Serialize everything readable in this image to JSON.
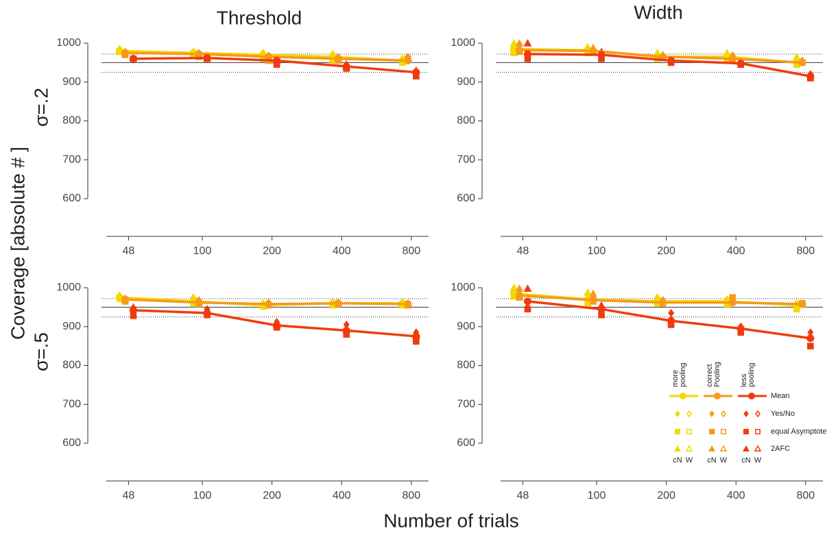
{
  "figure": {
    "ylabel": "Coverage [absolute # ]",
    "xlabel": "Number of trials",
    "reference": {
      "solid": 950,
      "dotted": [
        925,
        972
      ]
    },
    "legend": {
      "columns": [
        [
          "more",
          "pooling"
        ],
        [
          "correct",
          "Pooling"
        ],
        [
          "less",
          "pooling"
        ]
      ],
      "rows": [
        "Mean",
        "Yes/No",
        "equal Asymptote",
        "2AFC"
      ],
      "variants": [
        "cN",
        "W"
      ]
    }
  },
  "chart_data": [
    {
      "type": "line",
      "title": "Threshold",
      "row_label": "σ=.2",
      "x": [
        48,
        100,
        200,
        400,
        800
      ],
      "xlog": true,
      "xlim": [
        32,
        950
      ],
      "xticks": [
        48,
        100,
        200,
        400,
        800
      ],
      "ylim": [
        600,
        1000
      ],
      "yticks": [
        600,
        700,
        800,
        900,
        1000
      ],
      "series": [
        {
          "color": "#f5d800",
          "values": [
            980,
            975,
            970,
            965,
            955
          ]
        },
        {
          "color": "#f59a1a",
          "values": [
            975,
            972,
            965,
            960,
            955
          ]
        },
        {
          "color": "#f03c0c",
          "values": [
            960,
            962,
            955,
            940,
            925
          ]
        }
      ],
      "markers": [
        {
          "shape": "diamond",
          "color": "#f5d800",
          "values": [
            985,
            978,
            975,
            972,
            960
          ]
        },
        {
          "shape": "square",
          "color": "#f5d800",
          "values": [
            978,
            970,
            960,
            955,
            950
          ]
        },
        {
          "shape": "triangle",
          "color": "#f5d800",
          "values": [
            982,
            975,
            972,
            968,
            962
          ]
        },
        {
          "shape": "diamond",
          "color": "#f59a1a",
          "values": [
            978,
            975,
            968,
            965,
            965
          ]
        },
        {
          "shape": "square",
          "color": "#f59a1a",
          "values": [
            970,
            965,
            955,
            955,
            960
          ]
        },
        {
          "shape": "triangle",
          "color": "#f59a1a",
          "values": [
            975,
            972,
            965,
            960,
            958
          ]
        },
        {
          "shape": "diamond",
          "color": "#f03c0c",
          "values": [
            958,
            968,
            955,
            945,
            925
          ]
        },
        {
          "shape": "square",
          "color": "#f03c0c",
          "values": [
            960,
            960,
            945,
            935,
            915
          ]
        },
        {
          "shape": "triangle",
          "color": "#f03c0c",
          "values": [
            962,
            962,
            955,
            940,
            930
          ]
        }
      ]
    },
    {
      "type": "line",
      "title": "Width",
      "x": [
        48,
        100,
        200,
        400,
        800
      ],
      "xlog": true,
      "xlim": [
        32,
        950
      ],
      "xticks": [
        48,
        100,
        200,
        400,
        800
      ],
      "ylim": [
        600,
        1000
      ],
      "yticks": [
        600,
        700,
        800,
        900,
        1000
      ],
      "series": [
        {
          "color": "#f5d800",
          "values": [
            985,
            982,
            965,
            965,
            950
          ]
        },
        {
          "color": "#f59a1a",
          "values": [
            982,
            980,
            965,
            960,
            950
          ]
        },
        {
          "color": "#f03c0c",
          "values": [
            972,
            970,
            955,
            948,
            915
          ]
        }
      ],
      "markers": [
        {
          "shape": "diamond",
          "color": "#f5d800",
          "values": [
            990,
            988,
            972,
            970,
            955
          ]
        },
        {
          "shape": "square",
          "color": "#f5d800",
          "values": [
            975,
            975,
            960,
            960,
            945
          ]
        },
        {
          "shape": "triangle",
          "color": "#f5d800",
          "values": [
            1000,
            990,
            975,
            975,
            965
          ]
        },
        {
          "shape": "diamond",
          "color": "#f59a1a",
          "values": [
            985,
            985,
            968,
            968,
            955
          ]
        },
        {
          "shape": "square",
          "color": "#f59a1a",
          "values": [
            978,
            978,
            962,
            960,
            950
          ]
        },
        {
          "shape": "triangle",
          "color": "#f59a1a",
          "values": [
            1000,
            988,
            970,
            968,
            955
          ]
        },
        {
          "shape": "diamond",
          "color": "#f03c0c",
          "values": [
            965,
            975,
            955,
            950,
            920
          ]
        },
        {
          "shape": "square",
          "color": "#f03c0c",
          "values": [
            960,
            960,
            950,
            945,
            910
          ]
        },
        {
          "shape": "triangle",
          "color": "#f03c0c",
          "values": [
            1000,
            978,
            958,
            952,
            918
          ]
        }
      ]
    },
    {
      "type": "line",
      "row_label": "σ=.5",
      "x": [
        48,
        100,
        200,
        400,
        800
      ],
      "xlog": true,
      "xlim": [
        32,
        950
      ],
      "xticks": [
        48,
        100,
        200,
        400,
        800
      ],
      "ylim": [
        600,
        1000
      ],
      "yticks": [
        600,
        700,
        800,
        900,
        1000
      ],
      "series": [
        {
          "color": "#f5d800",
          "values": [
            975,
            965,
            955,
            960,
            960
          ]
        },
        {
          "color": "#f59a1a",
          "values": [
            970,
            962,
            958,
            960,
            958
          ]
        },
        {
          "color": "#f03c0c",
          "values": [
            942,
            935,
            903,
            890,
            875
          ]
        }
      ],
      "markers": [
        {
          "shape": "diamond",
          "color": "#f5d800",
          "values": [
            980,
            975,
            960,
            962,
            962
          ]
        },
        {
          "shape": "square",
          "color": "#f5d800",
          "values": [
            972,
            960,
            952,
            955,
            955
          ]
        },
        {
          "shape": "triangle",
          "color": "#f5d800",
          "values": [
            978,
            970,
            958,
            960,
            960
          ]
        },
        {
          "shape": "diamond",
          "color": "#f59a1a",
          "values": [
            972,
            968,
            962,
            962,
            960
          ]
        },
        {
          "shape": "square",
          "color": "#f59a1a",
          "values": [
            965,
            958,
            955,
            958,
            955
          ]
        },
        {
          "shape": "triangle",
          "color": "#f59a1a",
          "values": [
            970,
            965,
            960,
            962,
            960
          ]
        },
        {
          "shape": "diamond",
          "color": "#f03c0c",
          "values": [
            948,
            945,
            912,
            905,
            885
          ]
        },
        {
          "shape": "square",
          "color": "#f03c0c",
          "values": [
            928,
            930,
            898,
            880,
            862
          ]
        },
        {
          "shape": "triangle",
          "color": "#f03c0c",
          "values": [
            950,
            938,
            905,
            892,
            878
          ]
        }
      ]
    },
    {
      "type": "line",
      "x": [
        48,
        100,
        200,
        400,
        800
      ],
      "xlog": true,
      "xlim": [
        32,
        950
      ],
      "xticks": [
        48,
        100,
        200,
        400,
        800
      ],
      "ylim": [
        600,
        1000
      ],
      "yticks": [
        600,
        700,
        800,
        900,
        1000
      ],
      "series": [
        {
          "color": "#f5d800",
          "values": [
            985,
            970,
            965,
            965,
            955
          ]
        },
        {
          "color": "#f59a1a",
          "values": [
            980,
            968,
            962,
            962,
            958
          ]
        },
        {
          "color": "#f03c0c",
          "values": [
            965,
            945,
            915,
            895,
            870
          ]
        }
      ],
      "markers": [
        {
          "shape": "diamond",
          "color": "#f5d800",
          "values": [
            990,
            985,
            975,
            970,
            960
          ]
        },
        {
          "shape": "square",
          "color": "#f5d800",
          "values": [
            978,
            960,
            960,
            958,
            945
          ]
        },
        {
          "shape": "triangle",
          "color": "#f5d800",
          "values": [
            1000,
            988,
            972,
            968,
            960
          ]
        },
        {
          "shape": "diamond",
          "color": "#f59a1a",
          "values": [
            985,
            980,
            968,
            968,
            958
          ]
        },
        {
          "shape": "square",
          "color": "#f59a1a",
          "values": [
            975,
            965,
            960,
            975,
            960
          ]
        },
        {
          "shape": "triangle",
          "color": "#f59a1a",
          "values": [
            998,
            985,
            968,
            965,
            958
          ]
        },
        {
          "shape": "diamond",
          "color": "#f03c0c",
          "values": [
            950,
            940,
            935,
            900,
            885
          ]
        },
        {
          "shape": "square",
          "color": "#f03c0c",
          "values": [
            945,
            930,
            905,
            885,
            850
          ]
        },
        {
          "shape": "triangle",
          "color": "#f03c0c",
          "values": [
            998,
            955,
            920,
            900,
            875
          ]
        }
      ]
    }
  ]
}
